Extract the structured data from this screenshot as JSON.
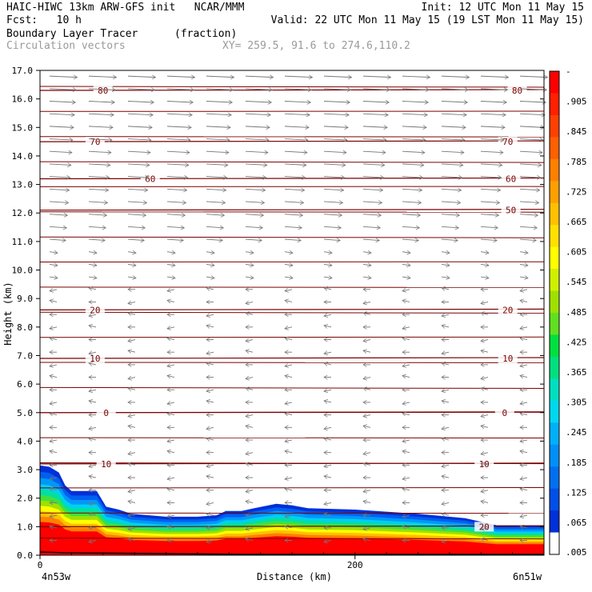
{
  "header": {
    "line1_left": "HAIC-HIWC 13km ARW-GFS init   NCAR/MMM",
    "line1_right": "Init: 12 UTC Mon 11 May 15",
    "line2_left": "Fcst:   10 h",
    "line2_right": "Valid: 22 UTC Mon 11 May 15 (19 LST Mon 11 May 15)",
    "field_name": "Boundary Layer Tracer",
    "field_units": "(fraction)",
    "vector_label": "Circulation vectors",
    "xy_label": "XY= 259.5, 91.6 to 274.6,110.2"
  },
  "chart_data": {
    "type": "area",
    "title": "Boundary Layer Tracer",
    "ylabel": "Height (km)",
    "xlabel": "Distance (km)",
    "ylim": [
      0,
      17
    ],
    "xlim": [
      0,
      320
    ],
    "y_ticks": [
      "0.0",
      "1.0",
      "2.0",
      "3.0",
      "4.0",
      "5.0",
      "6.0",
      "7.0",
      "8.0",
      "9.0",
      "10.0",
      "11.0",
      "12.0",
      "13.0",
      "14.0",
      "15.0",
      "16.0",
      "17.0"
    ],
    "x_ticks": [
      {
        "value": 0,
        "label": "0"
      },
      {
        "value": 200,
        "label": "200"
      }
    ],
    "x_end_labels": {
      "left": "4n53w",
      "right": "6n51w"
    },
    "tracer_top_km": [
      [
        0,
        3.15
      ],
      [
        6,
        3.1
      ],
      [
        12,
        2.9
      ],
      [
        16,
        2.45
      ],
      [
        20,
        2.25
      ],
      [
        36,
        2.25
      ],
      [
        42,
        1.7
      ],
      [
        50,
        1.6
      ],
      [
        58,
        1.45
      ],
      [
        80,
        1.35
      ],
      [
        100,
        1.35
      ],
      [
        112,
        1.4
      ],
      [
        118,
        1.55
      ],
      [
        128,
        1.55
      ],
      [
        136,
        1.65
      ],
      [
        150,
        1.8
      ],
      [
        160,
        1.75
      ],
      [
        170,
        1.65
      ],
      [
        200,
        1.6
      ],
      [
        240,
        1.45
      ],
      [
        270,
        1.3
      ],
      [
        290,
        1.05
      ],
      [
        320,
        1.05
      ]
    ],
    "contours": [
      {
        "label": "80",
        "km": 16.3,
        "label_positions": [
          40,
          303
        ]
      },
      {
        "label": "70",
        "km": 14.5,
        "label_positions": [
          35,
          297
        ]
      },
      {
        "label": "60",
        "km": 13.2,
        "label_positions": [
          70,
          299
        ]
      },
      {
        "label": "50",
        "km": 12.1,
        "label_positions": [
          299
        ]
      },
      {
        "label": "20",
        "km": 8.6,
        "label_positions": [
          35,
          297
        ]
      },
      {
        "label": "10",
        "km": 6.9,
        "label_positions": [
          35,
          297
        ]
      },
      {
        "label": "0",
        "km": 5.0,
        "label_positions": [
          42,
          295
        ]
      },
      {
        "label": "10",
        "km": 3.2,
        "label_positions": [
          42,
          282
        ]
      },
      {
        "label": "20",
        "km": 1.0,
        "label_positions": [
          282
        ]
      }
    ],
    "colorbar": {
      "labels": [
        "-",
        ".905",
        ".845",
        ".785",
        ".725",
        ".665",
        ".605",
        ".545",
        ".485",
        ".425",
        ".365",
        ".305",
        ".245",
        ".185",
        ".125",
        ".065",
        ".005"
      ],
      "colors": [
        "#ff0000",
        "#ff2000",
        "#ff4000",
        "#ff6000",
        "#ff8000",
        "#ffa000",
        "#ffc000",
        "#ffe000",
        "#ffff00",
        "#d0f000",
        "#a0e000",
        "#60e020",
        "#00e040",
        "#00e080",
        "#00e0c0",
        "#00d8f0",
        "#00b0f8",
        "#0090f8",
        "#0070f0",
        "#0050e8",
        "#0030d8",
        "#ffffff"
      ]
    }
  }
}
